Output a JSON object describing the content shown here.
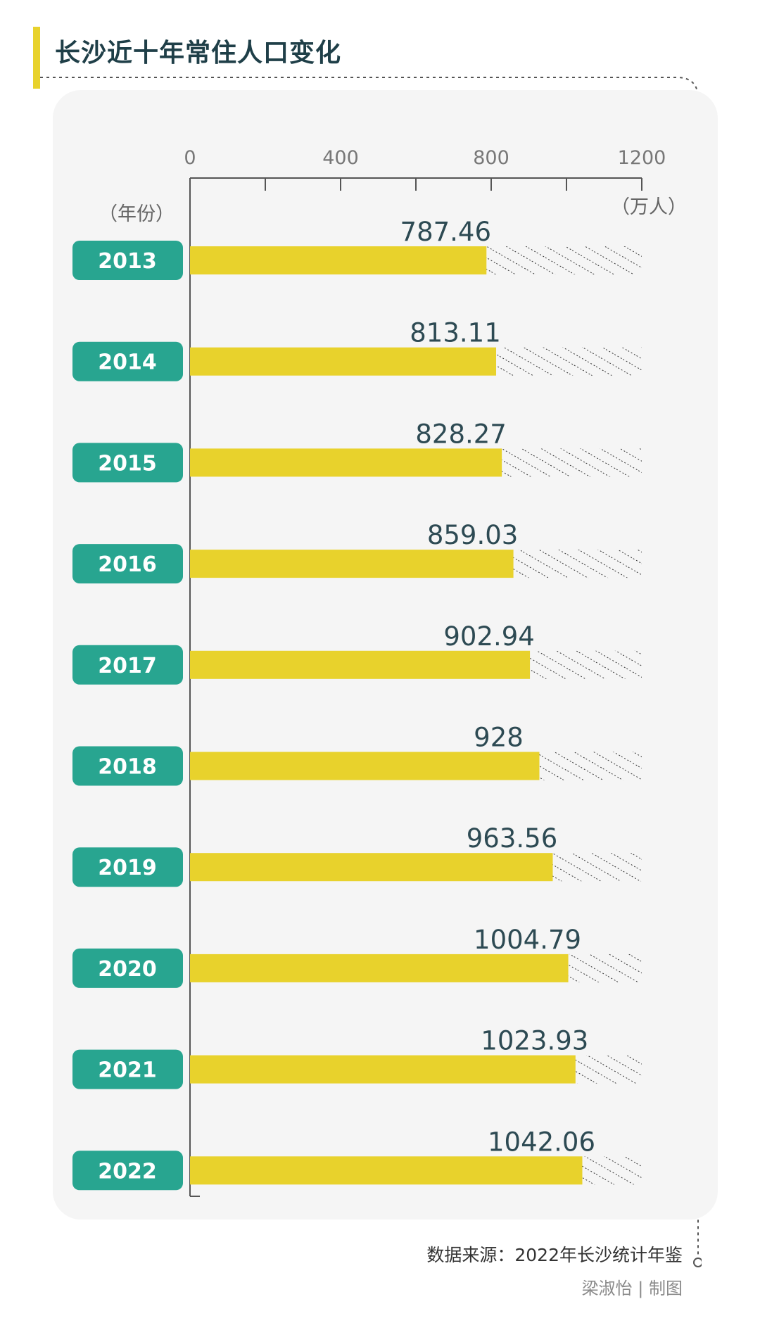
{
  "title": "长沙近十年常住人口变化",
  "source": "数据来源：2022年长沙统计年鉴",
  "credit": "梁淑怡 | 制图",
  "colors": {
    "bar": "#e8d22c",
    "year_badge": "#28a590",
    "text_dark": "#2d4a53",
    "panel": "#f5f5f5",
    "title_accent": "#e8d22c"
  },
  "chart_data": {
    "type": "bar",
    "orientation": "horizontal",
    "title": "长沙近十年常住人口变化",
    "ylabel": "（年份）",
    "xlabel": "（万人）",
    "xlim": [
      0,
      1200
    ],
    "xticks": [
      0,
      400,
      800,
      1200
    ],
    "categories": [
      "2013",
      "2014",
      "2015",
      "2016",
      "2017",
      "2018",
      "2019",
      "2020",
      "2021",
      "2022"
    ],
    "values": [
      787.46,
      813.11,
      828.27,
      859.03,
      902.94,
      928,
      963.56,
      1004.79,
      1023.93,
      1042.06
    ],
    "value_labels": [
      "787.46",
      "813.11",
      "828.27",
      "859.03",
      "902.94",
      "928",
      "963.56",
      "1004.79",
      "1023.93",
      "1042.06"
    ],
    "remainder_fill": "hatched",
    "grid": false
  }
}
